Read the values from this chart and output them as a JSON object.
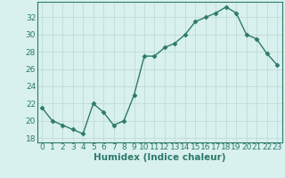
{
  "x": [
    0,
    1,
    2,
    3,
    4,
    5,
    6,
    7,
    8,
    9,
    10,
    11,
    12,
    13,
    14,
    15,
    16,
    17,
    18,
    19,
    20,
    21,
    22,
    23
  ],
  "y": [
    21.5,
    20.0,
    19.5,
    19.0,
    18.5,
    22.0,
    21.0,
    19.5,
    20.0,
    23.0,
    27.5,
    27.5,
    28.5,
    29.0,
    30.0,
    31.5,
    32.0,
    32.5,
    33.2,
    32.5,
    30.0,
    29.5,
    27.8,
    26.5
  ],
  "line_color": "#2d7a6a",
  "marker": "D",
  "marker_size": 2.5,
  "bg_color": "#d8f0ee",
  "grid_color": "#c0dbd8",
  "xlabel": "Humidex (Indice chaleur)",
  "ylim": [
    17.5,
    33.8
  ],
  "yticks": [
    18,
    20,
    22,
    24,
    26,
    28,
    30,
    32
  ],
  "xticks": [
    0,
    1,
    2,
    3,
    4,
    5,
    6,
    7,
    8,
    9,
    10,
    11,
    12,
    13,
    14,
    15,
    16,
    17,
    18,
    19,
    20,
    21,
    22,
    23
  ],
  "tick_label_fontsize": 6.5,
  "xlabel_fontsize": 7.5,
  "line_width": 1.0
}
